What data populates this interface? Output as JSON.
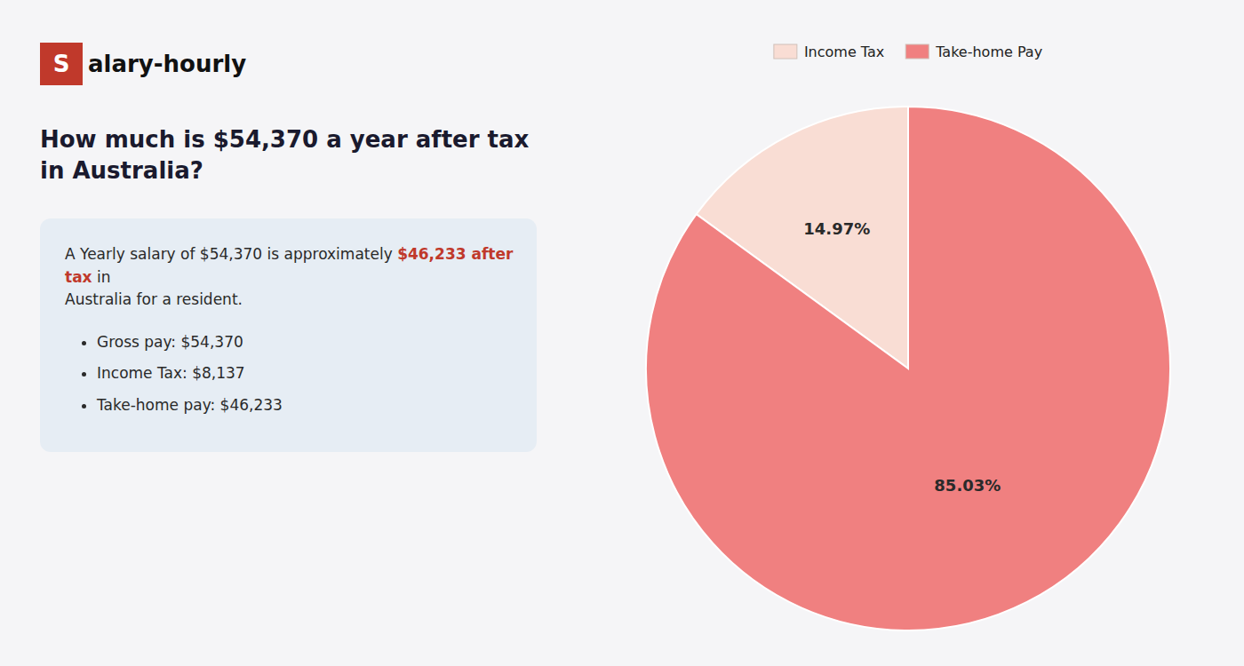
{
  "chart_data": {
    "type": "pie",
    "title": "How much is $54,370 a year after tax in Australia?",
    "annotations": [
      "S",
      "alary-hourly",
      "A Yearly salary of $54,370 is approximately ",
      "$46,233 after tax",
      " in",
      "Australia for a resident.",
      "Gross pay: $54,370",
      "Income Tax: $8,137",
      "Take-home pay: $46,233"
    ],
    "categories": [
      "Income Tax",
      "Take-home Pay"
    ],
    "values": [
      14.97,
      85.03
    ],
    "value_labels": [
      "14.97%",
      "85.03%"
    ],
    "colors": [
      "#f9ddd4",
      "#f08080"
    ],
    "data_labels": true,
    "legend": "top"
  }
}
